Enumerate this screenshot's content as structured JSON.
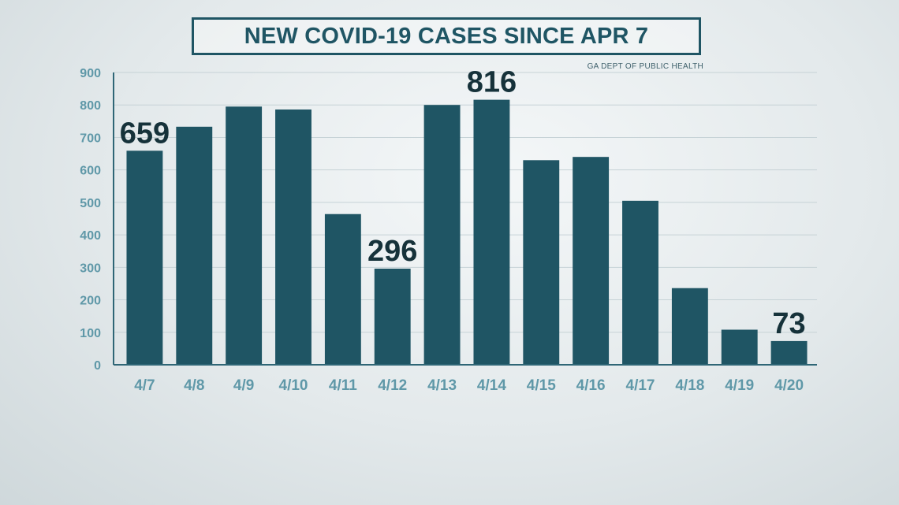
{
  "title": "NEW COVID-19 CASES SINCE APR 7",
  "source": "GA DEPT OF PUBLIC HEALTH",
  "colors": {
    "bar": "#1f5564",
    "axis": "#5f98a8",
    "title": "#1f5564",
    "grid": "#c6d2d6"
  },
  "chart_data": {
    "type": "bar",
    "title": "NEW COVID-19 CASES SINCE APR 7",
    "xlabel": "",
    "ylabel": "",
    "categories": [
      "4/7",
      "4/8",
      "4/9",
      "4/10",
      "4/11",
      "4/12",
      "4/13",
      "4/14",
      "4/15",
      "4/16",
      "4/17",
      "4/18",
      "4/19",
      "4/20"
    ],
    "values": [
      659,
      733,
      795,
      786,
      464,
      296,
      800,
      816,
      630,
      640,
      505,
      236,
      108,
      73
    ],
    "data_labels": {
      "0": "659",
      "5": "296",
      "7": "816",
      "13": "73"
    },
    "ylim": [
      0,
      900
    ],
    "yticks": [
      0,
      100,
      200,
      300,
      400,
      500,
      600,
      700,
      800,
      900
    ],
    "grid": true
  }
}
